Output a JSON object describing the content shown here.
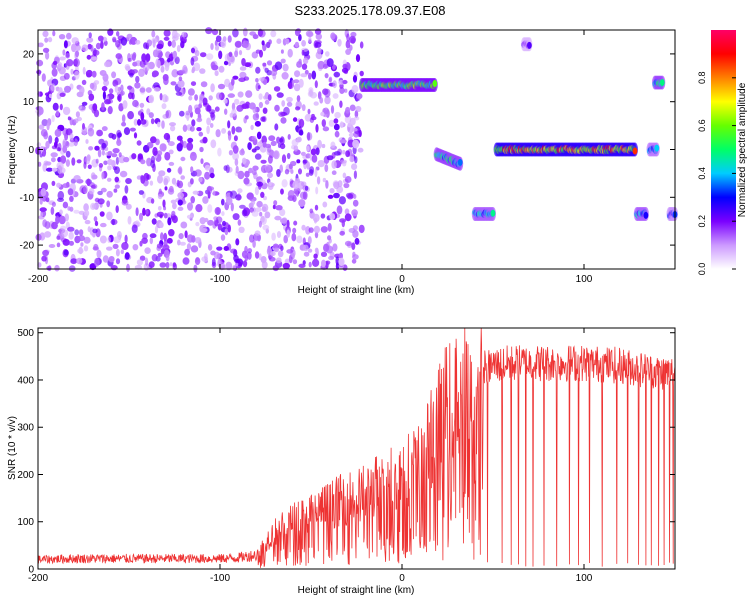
{
  "title": "S233.2025.178.09.37.E08",
  "chart_data": [
    {
      "type": "heatmap",
      "xlabel": "Height of straight line (km)",
      "ylabel": "Frequency (Hz)",
      "xlim": [
        -200,
        150
      ],
      "ylim": [
        -25,
        25
      ],
      "xticks": [
        -200,
        -100,
        0,
        100
      ],
      "xtick_labels": [
        "-200",
        "-100",
        "0",
        "100"
      ],
      "yticks": [
        -20,
        -10,
        0,
        10,
        20
      ],
      "ytick_labels": [
        "-20",
        "-10",
        "0",
        "10",
        "20"
      ],
      "colorbar": {
        "label": "Normalized spectral amplitude",
        "range": [
          0,
          1
        ],
        "ticks": [
          0,
          0.2,
          0.4,
          0.6,
          0.8
        ],
        "tick_labels": [
          "0.0",
          "0.2",
          "0.4",
          "0.6",
          "0.8"
        ],
        "colors": [
          "#ffffff",
          "#cc99ff",
          "#7a00ff",
          "#0000ff",
          "#00ccff",
          "#00ff66",
          "#66ff00",
          "#ffff00",
          "#ff8000",
          "#ff0000",
          "#ff0066"
        ]
      },
      "noise_region": {
        "x": [
          -200,
          -22
        ],
        "y": [
          -25,
          25
        ],
        "typical_amplitude": 0.15
      },
      "features": [
        {
          "x": [
            -22,
            18
          ],
          "y": [
            13.5,
            13.5
          ],
          "amplitude": 0.55
        },
        {
          "x": [
            19,
            32
          ],
          "y": [
            -1,
            -3
          ],
          "amplitude": 0.45
        },
        {
          "x": [
            40,
            50
          ],
          "y": [
            -13.5,
            -13.5
          ],
          "amplitude": 0.4
        },
        {
          "x": [
            52,
            128
          ],
          "y": [
            0,
            0
          ],
          "amplitude": 0.75
        },
        {
          "x": [
            129,
            134
          ],
          "y": [
            -13.5,
            -13.5
          ],
          "amplitude": 0.4
        },
        {
          "x": [
            136,
            140
          ],
          "y": [
            0,
            0
          ],
          "amplitude": 0.35
        },
        {
          "x": [
            139,
            143
          ],
          "y": [
            14,
            14
          ],
          "amplitude": 0.45
        },
        {
          "x": [
            67,
            70
          ],
          "y": [
            22,
            22
          ],
          "amplitude": 0.2
        },
        {
          "x": [
            147,
            150
          ],
          "y": [
            -13.5,
            -13.5
          ],
          "amplitude": 0.3
        }
      ]
    },
    {
      "type": "line",
      "xlabel": "Height of straight line (km)",
      "ylabel": "SNR (10 * v/v)",
      "xlim": [
        -200,
        150
      ],
      "ylim": [
        0,
        510
      ],
      "xticks": [
        -200,
        -100,
        0,
        100
      ],
      "xtick_labels": [
        "-200",
        "-100",
        "0",
        "100"
      ],
      "yticks": [
        0,
        100,
        200,
        300,
        400,
        500
      ],
      "ytick_labels": [
        "0",
        "100",
        "200",
        "300",
        "400",
        "500"
      ],
      "line_color": "#ee3333",
      "series": [
        {
          "x": [
            -200,
            -180,
            -160,
            -140,
            -120,
            -100,
            -90,
            -80,
            -75,
            -70,
            -60,
            -50,
            -40,
            -30,
            -20,
            -10,
            0,
            10,
            15,
            20,
            25,
            30,
            35,
            40,
            45,
            50,
            60,
            80,
            100,
            120,
            140,
            150
          ],
          "y": [
            20,
            22,
            22,
            22,
            22,
            22,
            24,
            30,
            60,
            80,
            105,
            120,
            140,
            155,
            165,
            190,
            210,
            235,
            270,
            330,
            360,
            380,
            400,
            300,
            430,
            435,
            440,
            440,
            440,
            435,
            420,
            420
          ]
        }
      ],
      "dropouts_x": [
        47,
        55,
        60,
        64,
        68,
        72,
        78,
        85,
        92,
        97,
        103,
        110,
        118,
        124,
        130,
        134,
        137,
        141,
        144,
        147,
        149
      ]
    }
  ]
}
